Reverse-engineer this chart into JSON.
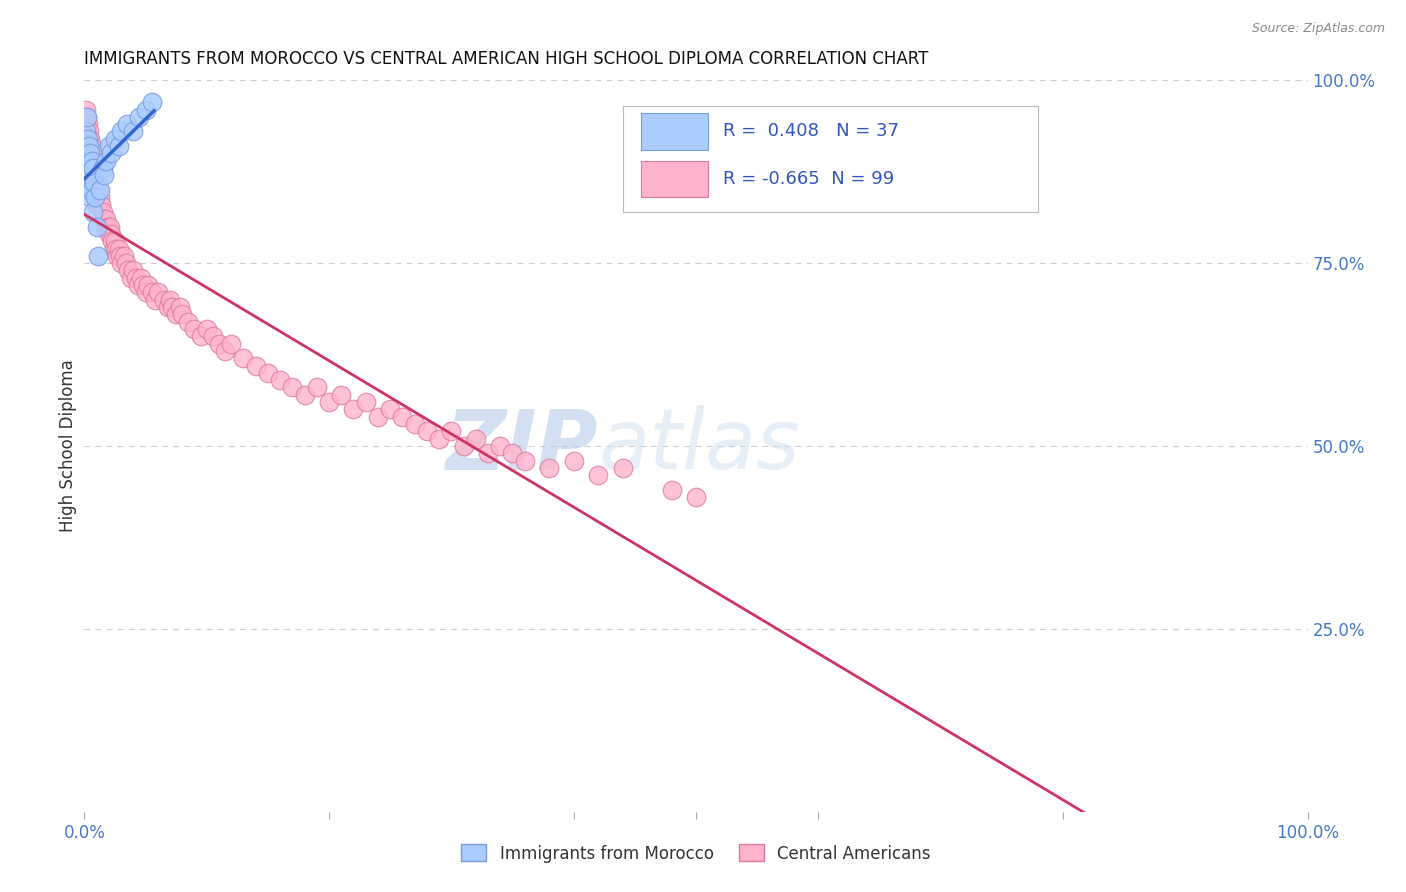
{
  "title": "IMMIGRANTS FROM MOROCCO VS CENTRAL AMERICAN HIGH SCHOOL DIPLOMA CORRELATION CHART",
  "source": "Source: ZipAtlas.com",
  "ylabel": "High School Diploma",
  "xlim": [
    0.0,
    1.0
  ],
  "ylim": [
    0.0,
    1.0
  ],
  "grid_color": "#cccccc",
  "background_color": "#ffffff",
  "morocco_color": "#aaccff",
  "morocco_edge": "#7799dd",
  "central_color": "#ffb3cc",
  "central_edge": "#dd7799",
  "morocco_R": 0.408,
  "morocco_N": 37,
  "central_R": -0.665,
  "central_N": 99,
  "morocco_line_color": "#3366cc",
  "central_line_color": "#cc3366",
  "watermark": "ZIPatlas",
  "watermark_color": "#c8d8f0",
  "morocco_x": [
    0.001,
    0.001,
    0.002,
    0.002,
    0.002,
    0.003,
    0.003,
    0.003,
    0.003,
    0.004,
    0.004,
    0.004,
    0.005,
    0.005,
    0.005,
    0.006,
    0.006,
    0.007,
    0.007,
    0.008,
    0.009,
    0.01,
    0.011,
    0.013,
    0.015,
    0.016,
    0.018,
    0.02,
    0.022,
    0.025,
    0.028,
    0.03,
    0.035,
    0.04,
    0.045,
    0.05,
    0.055
  ],
  "morocco_y": [
    0.93,
    0.91,
    0.95,
    0.9,
    0.88,
    0.92,
    0.89,
    0.87,
    0.85,
    0.91,
    0.88,
    0.86,
    0.9,
    0.87,
    0.84,
    0.89,
    0.85,
    0.88,
    0.82,
    0.86,
    0.84,
    0.8,
    0.76,
    0.85,
    0.88,
    0.87,
    0.89,
    0.91,
    0.9,
    0.92,
    0.91,
    0.93,
    0.94,
    0.93,
    0.95,
    0.96,
    0.97
  ],
  "central_x": [
    0.001,
    0.001,
    0.002,
    0.002,
    0.003,
    0.003,
    0.004,
    0.004,
    0.005,
    0.005,
    0.006,
    0.006,
    0.007,
    0.007,
    0.008,
    0.008,
    0.009,
    0.009,
    0.01,
    0.01,
    0.011,
    0.012,
    0.013,
    0.014,
    0.015,
    0.016,
    0.017,
    0.018,
    0.019,
    0.02,
    0.021,
    0.022,
    0.023,
    0.024,
    0.025,
    0.026,
    0.027,
    0.028,
    0.029,
    0.03,
    0.032,
    0.034,
    0.036,
    0.038,
    0.04,
    0.042,
    0.044,
    0.046,
    0.048,
    0.05,
    0.052,
    0.055,
    0.058,
    0.06,
    0.065,
    0.068,
    0.07,
    0.072,
    0.075,
    0.078,
    0.08,
    0.085,
    0.09,
    0.095,
    0.1,
    0.105,
    0.11,
    0.115,
    0.12,
    0.13,
    0.14,
    0.15,
    0.16,
    0.17,
    0.18,
    0.19,
    0.2,
    0.21,
    0.22,
    0.23,
    0.24,
    0.25,
    0.26,
    0.27,
    0.28,
    0.29,
    0.3,
    0.31,
    0.32,
    0.33,
    0.34,
    0.35,
    0.36,
    0.38,
    0.4,
    0.42,
    0.44,
    0.48,
    0.5
  ],
  "central_y": [
    0.96,
    0.93,
    0.95,
    0.91,
    0.94,
    0.9,
    0.93,
    0.89,
    0.92,
    0.88,
    0.91,
    0.87,
    0.9,
    0.86,
    0.89,
    0.85,
    0.88,
    0.84,
    0.87,
    0.83,
    0.86,
    0.85,
    0.84,
    0.83,
    0.82,
    0.81,
    0.8,
    0.81,
    0.8,
    0.79,
    0.8,
    0.79,
    0.78,
    0.77,
    0.78,
    0.77,
    0.76,
    0.77,
    0.76,
    0.75,
    0.76,
    0.75,
    0.74,
    0.73,
    0.74,
    0.73,
    0.72,
    0.73,
    0.72,
    0.71,
    0.72,
    0.71,
    0.7,
    0.71,
    0.7,
    0.69,
    0.7,
    0.69,
    0.68,
    0.69,
    0.68,
    0.67,
    0.66,
    0.65,
    0.66,
    0.65,
    0.64,
    0.63,
    0.64,
    0.62,
    0.61,
    0.6,
    0.59,
    0.58,
    0.57,
    0.58,
    0.56,
    0.57,
    0.55,
    0.56,
    0.54,
    0.55,
    0.54,
    0.53,
    0.52,
    0.51,
    0.52,
    0.5,
    0.51,
    0.49,
    0.5,
    0.49,
    0.48,
    0.47,
    0.48,
    0.46,
    0.47,
    0.44,
    0.43
  ]
}
